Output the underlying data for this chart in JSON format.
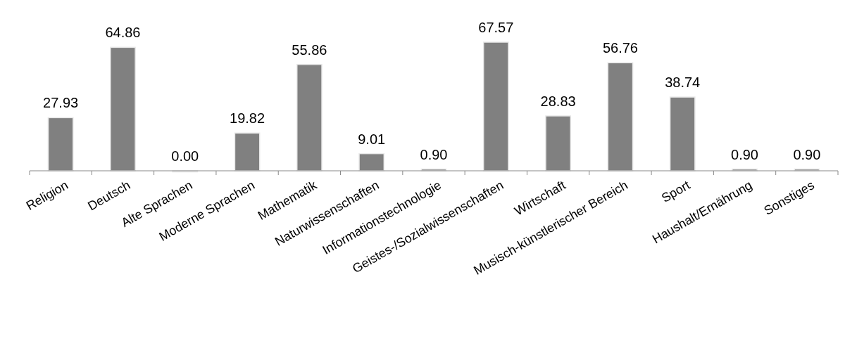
{
  "chart_data": {
    "type": "bar",
    "categories": [
      "Religion",
      "Deutsch",
      "Alte Sprachen",
      "Moderne Sprachen",
      "Mathematik",
      "Naturwissenschaften",
      "Informationstechnologie",
      "Geistes-/Sozialwissenschaften",
      "Wirtschaft",
      "Musisch-künstlerischer Bereich",
      "Sport",
      "Haushalt/Ernährung",
      "Sonstiges"
    ],
    "values": [
      27.93,
      64.86,
      0.0,
      19.82,
      55.86,
      9.01,
      0.9,
      67.57,
      28.83,
      56.76,
      38.74,
      0.9,
      0.9
    ],
    "color": "#808080",
    "data_labels": true,
    "value_labels": [
      "27.93",
      "64.86",
      "0.00",
      "19.82",
      "55.86",
      "9.01",
      "0.90",
      "67.57",
      "28.83",
      "56.76",
      "38.74",
      "0.90",
      "0.90"
    ]
  }
}
